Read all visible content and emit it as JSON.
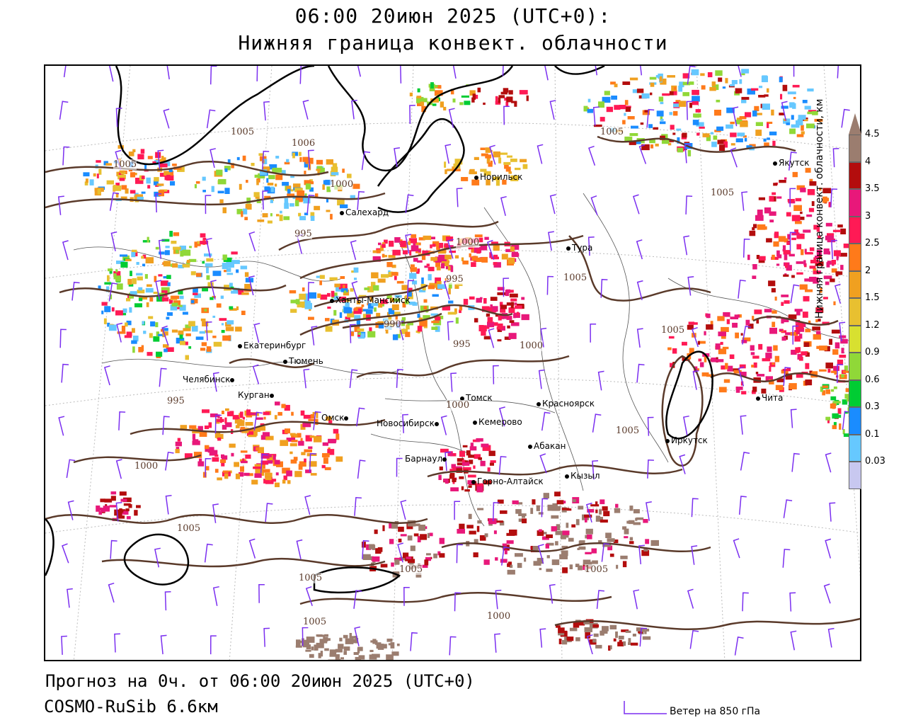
{
  "header": {
    "line1": "06:00 20июн 2025 (UTC+0):",
    "line2": "Нижняя граница конвект. облачности"
  },
  "footer": {
    "forecast": "Прогноз на 0ч. от 06:00 20июн 2025 (UTC+0)",
    "model": "COSMO-RuSib 6.6км",
    "wind_legend": "Ветер на 850 гПа"
  },
  "colors": {
    "wind": "#7b2ff0",
    "isobar": "#5a3a2a",
    "coast": "#000000"
  },
  "scale": {
    "title": "Нижняя граница конвект. облачности, км",
    "levels": [
      {
        "label": "4.5",
        "color": "#9b7d6f"
      },
      {
        "label": "4",
        "color": "#b30d0d"
      },
      {
        "label": "3.5",
        "color": "#e8187a"
      },
      {
        "label": "3",
        "color": "#ff1a55"
      },
      {
        "label": "2.5",
        "color": "#ff7a1a"
      },
      {
        "label": "2",
        "color": "#f0a020"
      },
      {
        "label": "1.5",
        "color": "#e8c030"
      },
      {
        "label": "1.2",
        "color": "#d8e030"
      },
      {
        "label": "0.9",
        "color": "#90d838"
      },
      {
        "label": "0.6",
        "color": "#00cc33"
      },
      {
        "label": "0.3",
        "color": "#1a8cff"
      },
      {
        "label": "0.1",
        "color": "#66c8ff"
      },
      {
        "label": "0.03",
        "color": "#c8c8f0"
      }
    ]
  },
  "cities": [
    {
      "name": "Норильск"
    },
    {
      "name": "Якутск"
    },
    {
      "name": "Салехард"
    },
    {
      "name": "Тура"
    },
    {
      "name": "Ханты-Мансийск"
    },
    {
      "name": "Екатеринбург"
    },
    {
      "name": "Тюмень"
    },
    {
      "name": "Челябинск"
    },
    {
      "name": "Курган"
    },
    {
      "name": "Омск"
    },
    {
      "name": "Новосибирск"
    },
    {
      "name": "Томск"
    },
    {
      "name": "Кемерово"
    },
    {
      "name": "Красноярск"
    },
    {
      "name": "Абакан"
    },
    {
      "name": "Барнаул"
    },
    {
      "name": "Горно-Алтайск"
    },
    {
      "name": "Кызыл"
    },
    {
      "name": "Иркутск"
    },
    {
      "name": "Чита"
    }
  ],
  "isobars": [
    "1005",
    "1006",
    "1005",
    "1000",
    "995",
    "1000",
    "995",
    "990",
    "995",
    "1000",
    "1005",
    "1005",
    "1005",
    "995",
    "1000",
    "1005",
    "1005",
    "1000",
    "1005",
    "1005",
    "1005",
    "1000",
    "1005",
    "1005"
  ]
}
